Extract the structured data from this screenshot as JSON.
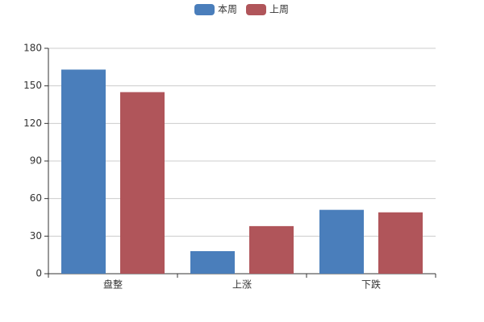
{
  "chart_data": {
    "type": "bar",
    "categories": [
      "盘整",
      "上涨",
      "下跌"
    ],
    "series": [
      {
        "name": "本周",
        "color": "#4a7ebb",
        "values": [
          163,
          18,
          51
        ]
      },
      {
        "name": "上周",
        "color": "#b0555a",
        "values": [
          145,
          38,
          49
        ]
      }
    ],
    "ylim": [
      0,
      180
    ],
    "yticks": [
      0,
      30,
      60,
      90,
      120,
      150,
      180
    ],
    "grid": true,
    "legend": "top"
  }
}
